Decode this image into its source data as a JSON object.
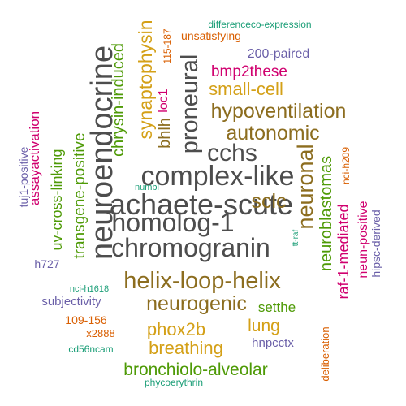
{
  "words": [
    {
      "text": "neuroendocrine",
      "color": "#4d4d4d"
    },
    {
      "text": "complex-like",
      "color": "#4d4d4d"
    },
    {
      "text": "achaete-scute",
      "color": "#4d4d4d"
    },
    {
      "text": "homolog-1",
      "color": "#4d4d4d"
    },
    {
      "text": "chromogranin",
      "color": "#4d4d4d"
    },
    {
      "text": "cchs",
      "color": "#4d4d4d"
    },
    {
      "text": "proneural",
      "color": "#4d4d4d"
    },
    {
      "text": "helix-loop-helix",
      "color": "#8c6d1f"
    },
    {
      "text": "hypoventilation",
      "color": "#8c6d1f"
    },
    {
      "text": "autonomic",
      "color": "#8c6d1f"
    },
    {
      "text": "neurogenic",
      "color": "#8c6d1f"
    },
    {
      "text": "sclc",
      "color": "#8c6d1f"
    },
    {
      "text": "neuronal",
      "color": "#8c6d1f"
    },
    {
      "text": "bhlh",
      "color": "#8c6d1f"
    },
    {
      "text": "small-cell",
      "color": "#d4a017"
    },
    {
      "text": "synaptophysin",
      "color": "#d4a017"
    },
    {
      "text": "phox2b",
      "color": "#d4a017"
    },
    {
      "text": "breathing",
      "color": "#d4a017"
    },
    {
      "text": "lung",
      "color": "#d4a017"
    },
    {
      "text": "bronchiolo-alveolar",
      "color": "#4e9a06"
    },
    {
      "text": "neuroblastomas",
      "color": "#4e9a06"
    },
    {
      "text": "chrysin-induced",
      "color": "#4e9a06"
    },
    {
      "text": "transgene-positive",
      "color": "#4e9a06"
    },
    {
      "text": "uv-cross-linking",
      "color": "#4e9a06"
    },
    {
      "text": "setthe",
      "color": "#4e9a06"
    },
    {
      "text": "bmp2these",
      "color": "#d0006f"
    },
    {
      "text": "raf-1-mediated",
      "color": "#d0006f"
    },
    {
      "text": "assayactivation",
      "color": "#d0006f"
    },
    {
      "text": "loc1",
      "color": "#d0006f"
    },
    {
      "text": "neun-positive",
      "color": "#d0006f"
    },
    {
      "text": "200-paired",
      "color": "#6a5fa8"
    },
    {
      "text": "hipsc-derived",
      "color": "#6a5fa8"
    },
    {
      "text": "subjectivity",
      "color": "#6a5fa8"
    },
    {
      "text": "hnpcctx",
      "color": "#6a5fa8"
    },
    {
      "text": "h727",
      "color": "#6a5fa8"
    },
    {
      "text": "tuj1-positive",
      "color": "#6a5fa8"
    },
    {
      "text": "unsatisfying",
      "color": "#d95f02"
    },
    {
      "text": "115-187",
      "color": "#d95f02"
    },
    {
      "text": "109-156",
      "color": "#d95f02"
    },
    {
      "text": "x2888",
      "color": "#d95f02"
    },
    {
      "text": "deliberation",
      "color": "#d95f02"
    },
    {
      "text": "nci-h209",
      "color": "#d95f02"
    },
    {
      "text": "differenceco-expression",
      "color": "#1b9e77"
    },
    {
      "text": "numbl",
      "color": "#1b9e77"
    },
    {
      "text": "nci-h1618",
      "color": "#1b9e77"
    },
    {
      "text": "cd56ncam",
      "color": "#1b9e77"
    },
    {
      "text": "phycoerythrin",
      "color": "#1b9e77"
    },
    {
      "text": "tt-raf",
      "color": "#1b9e77"
    }
  ]
}
